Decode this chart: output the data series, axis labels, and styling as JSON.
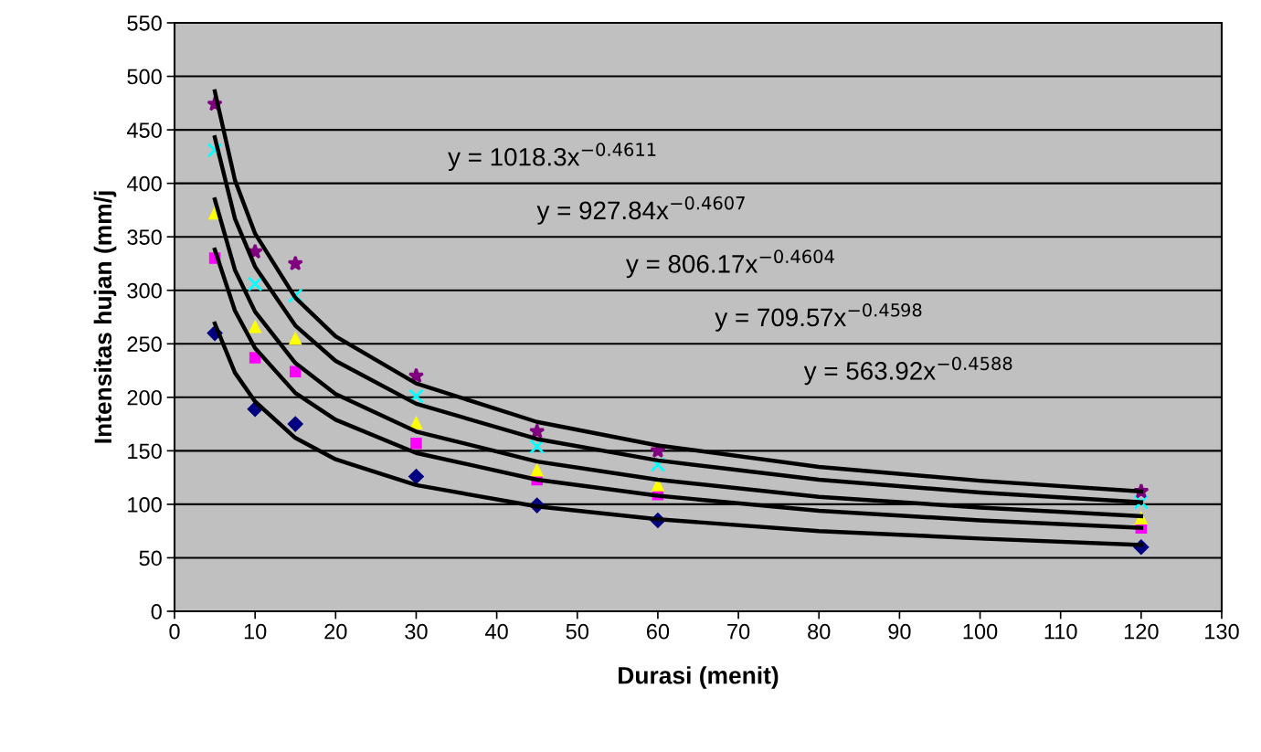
{
  "chart_data": {
    "type": "scatter",
    "xlabel": "Durasi (menit)",
    "ylabel": "Intensitas hujan (mm/j",
    "xlim": [
      0,
      130
    ],
    "xticks": [
      0,
      10,
      20,
      30,
      40,
      50,
      60,
      70,
      80,
      90,
      100,
      110,
      120,
      130
    ],
    "ylim": [
      0,
      550
    ],
    "yticks": [
      0,
      50,
      100,
      150,
      200,
      250,
      300,
      350,
      400,
      450,
      500,
      550
    ],
    "grid": "y",
    "legend": false,
    "x": [
      5,
      10,
      15,
      30,
      45,
      60,
      120
    ],
    "series": [
      {
        "color": "#000080",
        "marker": "diamond",
        "values": [
          260,
          189,
          175,
          126,
          99,
          85,
          60
        ]
      },
      {
        "color": "#ff00ff",
        "marker": "square",
        "values": [
          330,
          237,
          224,
          157,
          123,
          109,
          78
        ]
      },
      {
        "color": "#ffff00",
        "marker": "triangle",
        "values": [
          372,
          266,
          255,
          176,
          132,
          118,
          87
        ]
      },
      {
        "color": "#00ffff",
        "marker": "cross",
        "values": [
          431,
          306,
          295,
          201,
          154,
          137,
          102
        ]
      },
      {
        "color": "#800080",
        "marker": "star",
        "values": [
          474,
          336,
          325,
          220,
          168,
          150,
          112
        ]
      },
      {
        "type": "line",
        "color": "#000000",
        "marker": "none",
        "x": [
          5,
          7.5,
          10,
          15,
          20,
          30,
          45,
          60,
          80,
          100,
          120
        ],
        "values": [
          486,
          403,
          353,
          293,
          257,
          213,
          177,
          155,
          135,
          122,
          112
        ]
      },
      {
        "type": "line",
        "color": "#000000",
        "marker": "none",
        "x": [
          5,
          7.5,
          10,
          15,
          20,
          30,
          45,
          60,
          80,
          100,
          120
        ],
        "values": [
          443,
          367,
          322,
          267,
          234,
          194,
          161,
          141,
          123,
          111,
          102
        ]
      },
      {
        "type": "line",
        "color": "#000000",
        "marker": "none",
        "x": [
          5,
          7.5,
          10,
          15,
          20,
          30,
          45,
          60,
          80,
          100,
          120
        ],
        "values": [
          385,
          319,
          280,
          232,
          203,
          168,
          140,
          123,
          107,
          97,
          89
        ]
      },
      {
        "type": "line",
        "color": "#000000",
        "marker": "none",
        "x": [
          5,
          7.5,
          10,
          15,
          20,
          30,
          45,
          60,
          80,
          100,
          120
        ],
        "values": [
          338,
          281,
          246,
          204,
          179,
          148,
          123,
          108,
          94,
          85,
          78
        ]
      },
      {
        "type": "line",
        "color": "#000000",
        "marker": "none",
        "x": [
          5,
          7.5,
          10,
          15,
          20,
          30,
          45,
          60,
          80,
          100,
          120
        ],
        "values": [
          269,
          223,
          196,
          162,
          142,
          118,
          98,
          86,
          75,
          68,
          62
        ]
      }
    ],
    "annotations": [
      "y = 1018.3x$^{−0.4611}$",
      "y = 927.84x$^{−0.4607}$",
      "y = 806.17x$^{−0.4604}$",
      "y = 709.57x$^{−0.4598}$",
      "y = 563.92x$^{−0.4588}$"
    ]
  }
}
